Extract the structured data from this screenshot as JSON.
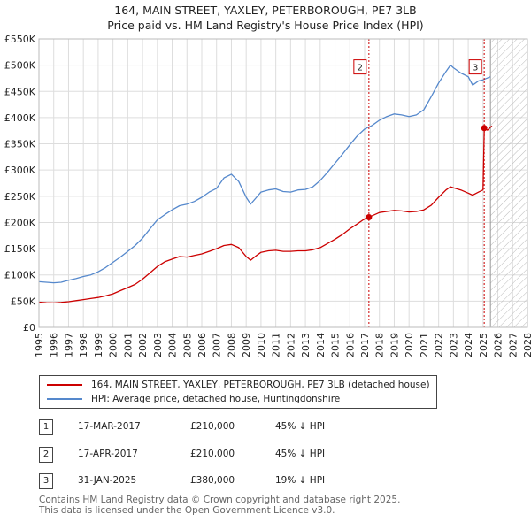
{
  "title_line1": "164, MAIN STREET, YAXLEY, PETERBOROUGH, PE7 3LB",
  "title_line2": "Price paid vs. HM Land Registry's House Price Index (HPI)",
  "colors": {
    "property": "#cc0000",
    "hpi": "#5588cc",
    "grid": "#dddddd",
    "marker_line": "#cc0000"
  },
  "chart_data": {
    "type": "line",
    "xlim": [
      1995,
      2028
    ],
    "ylim": [
      0,
      550000
    ],
    "x_ticks": [
      1995,
      1996,
      1997,
      1998,
      1999,
      2000,
      2001,
      2002,
      2003,
      2004,
      2005,
      2006,
      2007,
      2008,
      2009,
      2010,
      2011,
      2012,
      2013,
      2014,
      2015,
      2016,
      2017,
      2018,
      2019,
      2020,
      2021,
      2022,
      2023,
      2024,
      2025,
      2026,
      2027,
      2028
    ],
    "y_ticks": [
      {
        "value": 0,
        "label": "£0"
      },
      {
        "value": 50000,
        "label": "£50K"
      },
      {
        "value": 100000,
        "label": "£100K"
      },
      {
        "value": 150000,
        "label": "£150K"
      },
      {
        "value": 200000,
        "label": "£200K"
      },
      {
        "value": 250000,
        "label": "£250K"
      },
      {
        "value": 300000,
        "label": "£300K"
      },
      {
        "value": 350000,
        "label": "£350K"
      },
      {
        "value": 400000,
        "label": "£400K"
      },
      {
        "value": 450000,
        "label": "£450K"
      },
      {
        "value": 500000,
        "label": "£500K"
      },
      {
        "value": 550000,
        "label": "£550K"
      }
    ],
    "hatch_from": 2025.5,
    "series": [
      {
        "name": "164, MAIN STREET, YAXLEY, PETERBOROUGH, PE7 3LB (detached house)",
        "color": "#cc0000",
        "points": [
          [
            1995.0,
            48000
          ],
          [
            1995.5,
            47000
          ],
          [
            1996.0,
            46500
          ],
          [
            1996.5,
            47500
          ],
          [
            1997.0,
            49000
          ],
          [
            1997.5,
            51000
          ],
          [
            1998.0,
            53000
          ],
          [
            1998.5,
            55000
          ],
          [
            1999.0,
            57000
          ],
          [
            1999.5,
            60000
          ],
          [
            2000.0,
            64000
          ],
          [
            2000.5,
            70000
          ],
          [
            2001.0,
            76000
          ],
          [
            2001.5,
            82000
          ],
          [
            2002.0,
            92000
          ],
          [
            2002.5,
            104000
          ],
          [
            2003.0,
            116000
          ],
          [
            2003.5,
            125000
          ],
          [
            2004.0,
            130000
          ],
          [
            2004.5,
            135000
          ],
          [
            2005.0,
            134000
          ],
          [
            2005.5,
            137000
          ],
          [
            2006.0,
            140000
          ],
          [
            2006.5,
            145000
          ],
          [
            2007.0,
            150000
          ],
          [
            2007.5,
            156000
          ],
          [
            2008.0,
            158000
          ],
          [
            2008.5,
            152000
          ],
          [
            2009.0,
            135000
          ],
          [
            2009.3,
            128000
          ],
          [
            2009.7,
            137000
          ],
          [
            2010.0,
            143000
          ],
          [
            2010.5,
            146000
          ],
          [
            2011.0,
            147000
          ],
          [
            2011.5,
            145000
          ],
          [
            2012.0,
            145000
          ],
          [
            2012.5,
            146000
          ],
          [
            2013.0,
            146000
          ],
          [
            2013.5,
            148000
          ],
          [
            2014.0,
            152000
          ],
          [
            2014.5,
            160000
          ],
          [
            2015.0,
            168000
          ],
          [
            2015.5,
            177000
          ],
          [
            2016.0,
            188000
          ],
          [
            2016.5,
            197000
          ],
          [
            2016.9,
            205000
          ],
          [
            2017.21,
            210000
          ],
          [
            2017.29,
            210000
          ],
          [
            2017.6,
            214000
          ],
          [
            2018.0,
            219000
          ],
          [
            2018.5,
            221000
          ],
          [
            2019.0,
            223000
          ],
          [
            2019.5,
            222000
          ],
          [
            2020.0,
            220000
          ],
          [
            2020.5,
            221000
          ],
          [
            2021.0,
            224000
          ],
          [
            2021.5,
            233000
          ],
          [
            2022.0,
            248000
          ],
          [
            2022.5,
            262000
          ],
          [
            2022.8,
            268000
          ],
          [
            2023.0,
            266000
          ],
          [
            2023.5,
            262000
          ],
          [
            2024.0,
            256000
          ],
          [
            2024.3,
            252000
          ],
          [
            2024.7,
            258000
          ],
          [
            2025.0,
            262000
          ],
          [
            2025.08,
            380000
          ],
          [
            2025.3,
            376000
          ],
          [
            2025.6,
            384000
          ]
        ]
      },
      {
        "name": "HPI: Average price, detached house, Huntingdonshire",
        "color": "#5588cc",
        "points": [
          [
            1995.0,
            87000
          ],
          [
            1995.5,
            86000
          ],
          [
            1996.0,
            85000
          ],
          [
            1996.5,
            86000
          ],
          [
            1997.0,
            90000
          ],
          [
            1997.5,
            93000
          ],
          [
            1998.0,
            97000
          ],
          [
            1998.5,
            100000
          ],
          [
            1999.0,
            106000
          ],
          [
            1999.5,
            114000
          ],
          [
            2000.0,
            124000
          ],
          [
            2000.5,
            134000
          ],
          [
            2001.0,
            145000
          ],
          [
            2001.5,
            156000
          ],
          [
            2002.0,
            170000
          ],
          [
            2002.5,
            188000
          ],
          [
            2003.0,
            205000
          ],
          [
            2003.5,
            215000
          ],
          [
            2004.0,
            224000
          ],
          [
            2004.5,
            232000
          ],
          [
            2005.0,
            235000
          ],
          [
            2005.5,
            240000
          ],
          [
            2006.0,
            248000
          ],
          [
            2006.5,
            258000
          ],
          [
            2007.0,
            265000
          ],
          [
            2007.5,
            285000
          ],
          [
            2008.0,
            292000
          ],
          [
            2008.5,
            278000
          ],
          [
            2009.0,
            248000
          ],
          [
            2009.3,
            235000
          ],
          [
            2009.7,
            248000
          ],
          [
            2010.0,
            258000
          ],
          [
            2010.5,
            262000
          ],
          [
            2011.0,
            264000
          ],
          [
            2011.5,
            259000
          ],
          [
            2012.0,
            258000
          ],
          [
            2012.5,
            262000
          ],
          [
            2013.0,
            263000
          ],
          [
            2013.5,
            268000
          ],
          [
            2014.0,
            280000
          ],
          [
            2014.5,
            296000
          ],
          [
            2015.0,
            313000
          ],
          [
            2015.5,
            330000
          ],
          [
            2016.0,
            348000
          ],
          [
            2016.5,
            365000
          ],
          [
            2017.0,
            378000
          ],
          [
            2017.5,
            385000
          ],
          [
            2018.0,
            395000
          ],
          [
            2018.5,
            402000
          ],
          [
            2019.0,
            407000
          ],
          [
            2019.5,
            405000
          ],
          [
            2020.0,
            402000
          ],
          [
            2020.5,
            405000
          ],
          [
            2021.0,
            415000
          ],
          [
            2021.5,
            440000
          ],
          [
            2022.0,
            466000
          ],
          [
            2022.5,
            488000
          ],
          [
            2022.8,
            500000
          ],
          [
            2023.0,
            495000
          ],
          [
            2023.5,
            485000
          ],
          [
            2024.0,
            478000
          ],
          [
            2024.3,
            462000
          ],
          [
            2024.7,
            470000
          ],
          [
            2025.0,
            472000
          ],
          [
            2025.5,
            478000
          ]
        ]
      }
    ],
    "markers": [
      {
        "label": "2",
        "x": 2017.29,
        "y": 210000,
        "box_y": 495000
      },
      {
        "label": "3",
        "x": 2025.08,
        "y": 380000,
        "box_y": 495000
      }
    ]
  },
  "legend": {
    "property": "164, MAIN STREET, YAXLEY, PETERBOROUGH, PE7 3LB (detached house)",
    "hpi": "HPI: Average price, detached house, Huntingdonshire"
  },
  "sales": [
    {
      "num": "1",
      "date": "17-MAR-2017",
      "price": "£210,000",
      "hpi": "45% ↓ HPI"
    },
    {
      "num": "2",
      "date": "17-APR-2017",
      "price": "£210,000",
      "hpi": "45% ↓ HPI"
    },
    {
      "num": "3",
      "date": "31-JAN-2025",
      "price": "£380,000",
      "hpi": "19% ↓ HPI"
    }
  ],
  "footer_line1": "Contains HM Land Registry data © Crown copyright and database right 2025.",
  "footer_line2": "This data is licensed under the Open Government Licence v3.0."
}
